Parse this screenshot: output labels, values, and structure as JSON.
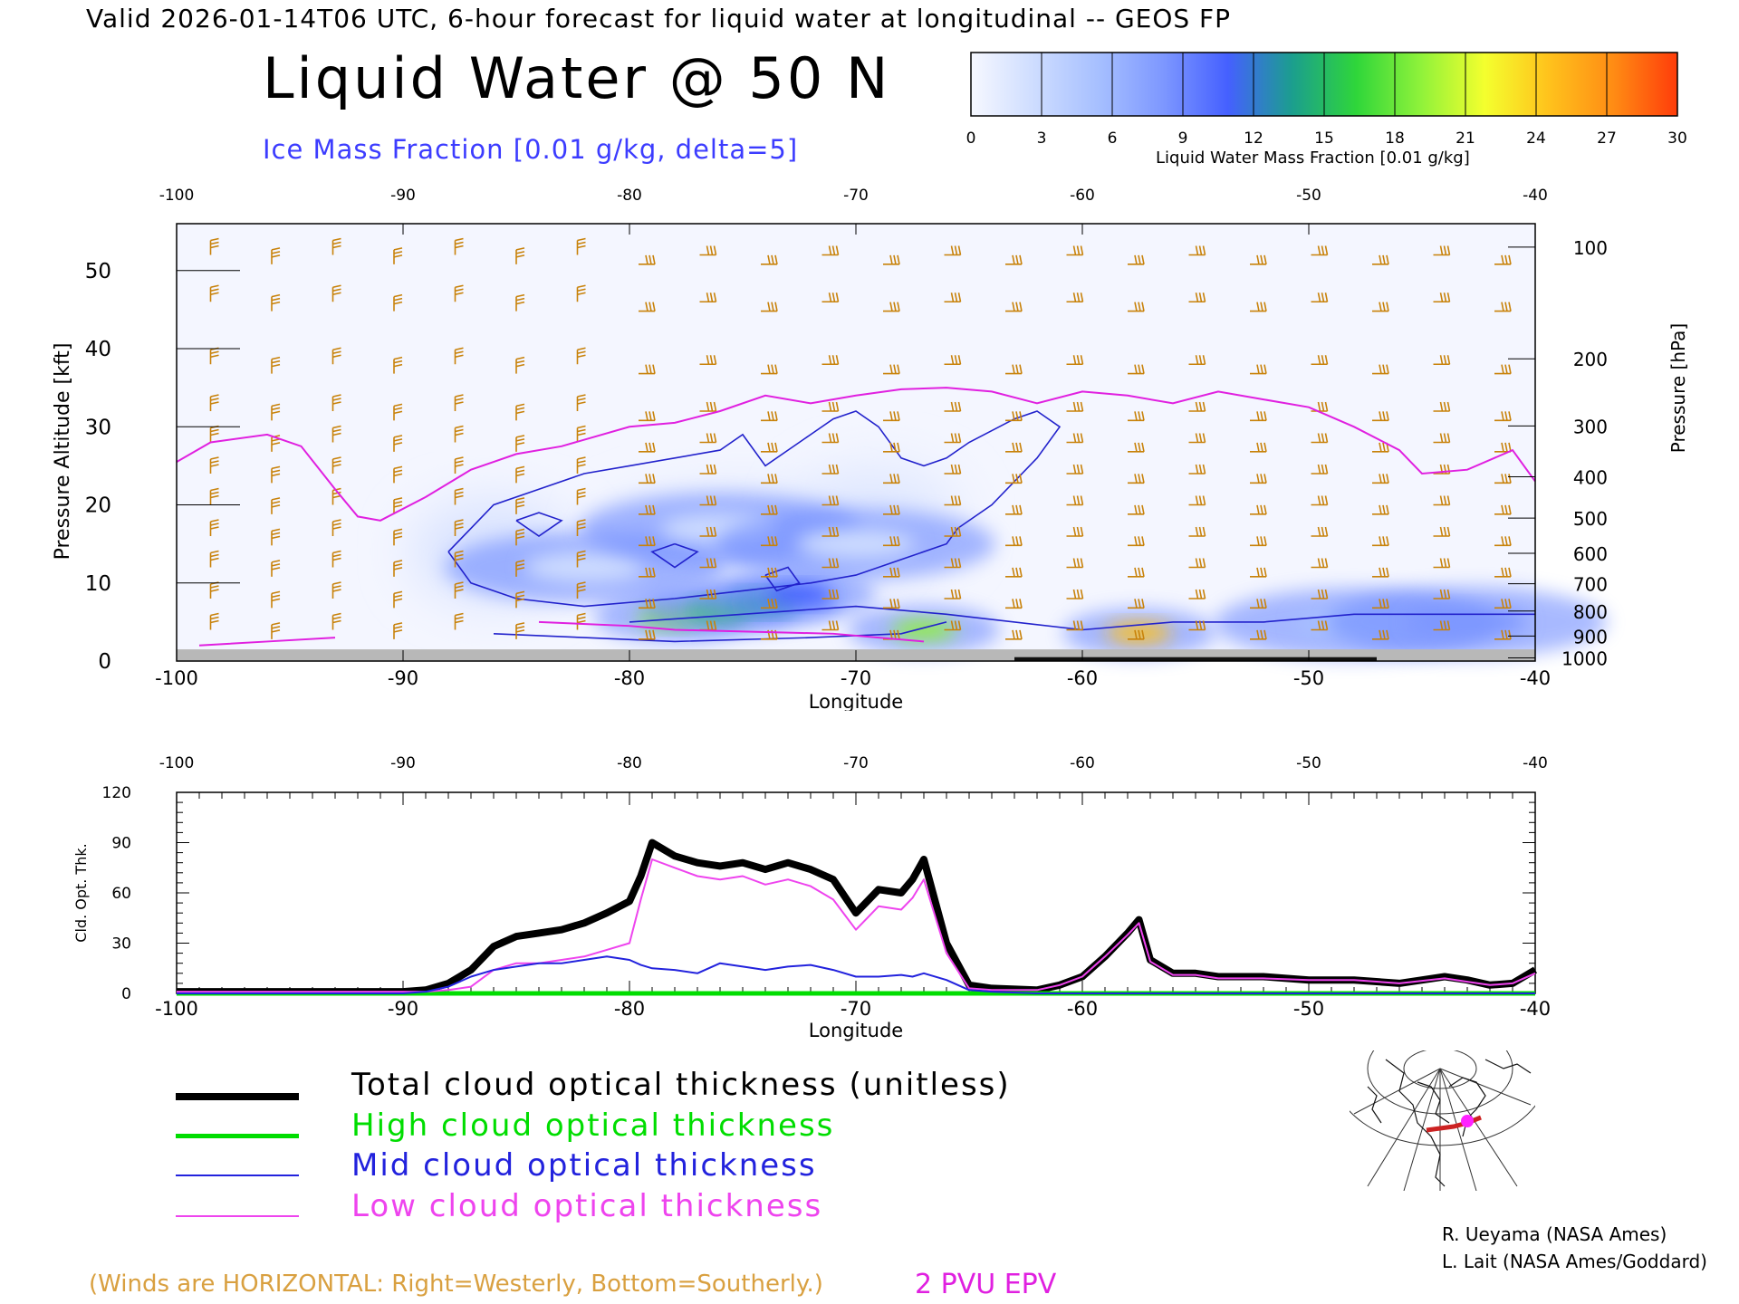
{
  "header": {
    "valid_line": "Valid 2026-01-14T06 UTC, 6-hour forecast for liquid water at longitudinal -- GEOS FP",
    "title": "Liquid Water @ 50 N",
    "subtitle": "Ice Mass Fraction [0.01 g/kg, delta=5]"
  },
  "colorbar": {
    "label": "Liquid Water Mass Fraction [0.01 g/kg]",
    "ticks": [
      "0",
      "3",
      "6",
      "9",
      "12",
      "15",
      "18",
      "21",
      "24",
      "27",
      "30"
    ],
    "colors": [
      "#f6f8ff",
      "#cddcff",
      "#a6bfff",
      "#7d97ff",
      "#4560ff",
      "#1b9e8e",
      "#2fd63a",
      "#8ff23a",
      "#f4ff2e",
      "#ffc21c",
      "#ff8c14",
      "#ff3c0a"
    ]
  },
  "chart_data": [
    {
      "type": "heatmap",
      "xlabel": "Longitude",
      "ylabel": "Pressure Altitude [kft]",
      "y2label": "Pressure [hPa]",
      "xlim": [
        -100,
        -40
      ],
      "ylim": [
        0,
        56
      ],
      "x_ticks": [
        "-100",
        "-90",
        "-80",
        "-70",
        "-60",
        "-50",
        "-40"
      ],
      "y_ticks": [
        "0",
        "10",
        "20",
        "30",
        "40",
        "50"
      ],
      "pressure_ticks": [
        {
          "label": "100",
          "kft": 53
        },
        {
          "label": "200",
          "kft": 38.7
        },
        {
          "label": "300",
          "kft": 30.1
        },
        {
          "label": "400",
          "kft": 23.6
        },
        {
          "label": "500",
          "kft": 18.3
        },
        {
          "label": "600",
          "kft": 13.8
        },
        {
          "label": "700",
          "kft": 9.9
        },
        {
          "label": "800",
          "kft": 6.4
        },
        {
          "label": "900",
          "kft": 3.2
        },
        {
          "label": "1000",
          "kft": 0.4
        }
      ],
      "liquid_water_blobs": [
        {
          "lon": -78.2,
          "kft": 5.6,
          "value": 19
        },
        {
          "lon": -76.0,
          "kft": 6.5,
          "value": 16
        },
        {
          "lon": -74.0,
          "kft": 7.5,
          "value": 14
        },
        {
          "lon": -72.5,
          "kft": 8.5,
          "value": 11
        },
        {
          "lon": -67.0,
          "kft": 4.0,
          "value": 20
        },
        {
          "lon": -57.5,
          "kft": 3.6,
          "value": 25
        },
        {
          "lon": -48.0,
          "kft": 4.8,
          "value": 6
        },
        {
          "lon": -43.0,
          "kft": 5.0,
          "value": 7
        },
        {
          "lon": -82.0,
          "kft": 12.0,
          "value": 4
        },
        {
          "lon": -76.0,
          "kft": 17.0,
          "value": 3
        },
        {
          "lon": -70.0,
          "kft": 15.0,
          "value": 3
        }
      ],
      "epv_2pvu_kft": [
        [
          -100,
          25.5
        ],
        [
          -98.5,
          28
        ],
        [
          -96,
          29
        ],
        [
          -94.5,
          27.5
        ],
        [
          -93,
          22
        ],
        [
          -92,
          18.5
        ],
        [
          -91,
          18
        ],
        [
          -89,
          21
        ],
        [
          -87,
          24.5
        ],
        [
          -85,
          26.5
        ],
        [
          -83,
          27.5
        ],
        [
          -80,
          30
        ],
        [
          -78,
          30.5
        ],
        [
          -76,
          32
        ],
        [
          -74,
          34
        ],
        [
          -72,
          33
        ],
        [
          -70,
          34
        ],
        [
          -68,
          34.8
        ],
        [
          -66,
          35
        ],
        [
          -64,
          34.5
        ],
        [
          -62,
          33
        ],
        [
          -60,
          34.5
        ],
        [
          -58,
          34
        ],
        [
          -56,
          33
        ],
        [
          -54,
          34.5
        ],
        [
          -52,
          33.5
        ],
        [
          -50,
          32.5
        ],
        [
          -48,
          30
        ],
        [
          -46,
          27
        ],
        [
          -45,
          24
        ],
        [
          -43,
          24.5
        ],
        [
          -41,
          27
        ],
        [
          -40,
          23
        ]
      ]
    },
    {
      "type": "line",
      "xlabel": "Longitude",
      "ylabel": "Cld. Opt. Thk.",
      "xlim": [
        -100,
        -40
      ],
      "ylim": [
        0,
        120
      ],
      "x_ticks": [
        "-100",
        "-90",
        "-80",
        "-70",
        "-60",
        "-50",
        "-40"
      ],
      "y_ticks": [
        "0",
        "30",
        "60",
        "90",
        "120"
      ],
      "x": [
        -100,
        -95,
        -90,
        -89,
        -88,
        -87,
        -86,
        -85,
        -84,
        -83,
        -82,
        -81,
        -80,
        -79.5,
        -79,
        -78,
        -77,
        -76,
        -75,
        -74,
        -73,
        -72,
        -71,
        -70,
        -69.5,
        -69,
        -68,
        -67.5,
        -67,
        -66,
        -65,
        -64,
        -62,
        -61,
        -60,
        -59,
        -58,
        -57.5,
        -57,
        -56,
        -55,
        -54,
        -52,
        -50,
        -48,
        -46,
        -44,
        -43,
        -42,
        -41,
        -40
      ],
      "series": [
        {
          "name": "Total cloud optical thickness (unitless)",
          "color": "#000000",
          "width": 8,
          "values": [
            1,
            1,
            1,
            2,
            6,
            14,
            28,
            34,
            36,
            38,
            42,
            48,
            55,
            70,
            90,
            82,
            78,
            76,
            78,
            74,
            78,
            74,
            68,
            48,
            55,
            62,
            60,
            68,
            80,
            30,
            5,
            3,
            2,
            5,
            10,
            22,
            36,
            44,
            20,
            12,
            12,
            10,
            10,
            8,
            8,
            6,
            10,
            8,
            5,
            6,
            14
          ]
        },
        {
          "name": "High cloud optical thickness",
          "color": "#00dd00",
          "width": 5,
          "values": [
            0,
            0,
            0,
            0,
            0,
            0,
            0,
            0,
            0,
            0,
            0,
            0,
            0,
            0,
            0,
            0,
            0,
            0,
            0,
            0,
            0,
            0,
            0,
            0,
            0,
            0,
            0,
            0,
            0,
            0,
            0,
            0,
            0,
            0,
            0,
            0,
            0,
            0,
            0,
            0,
            0,
            0,
            0,
            0,
            0,
            0,
            0,
            0,
            0,
            0,
            0
          ]
        },
        {
          "name": "Mid cloud optical thickness",
          "color": "#2222dd",
          "width": 2,
          "values": [
            0,
            0,
            0,
            1,
            4,
            10,
            14,
            16,
            18,
            18,
            20,
            22,
            20,
            17,
            15,
            14,
            12,
            18,
            16,
            14,
            16,
            17,
            14,
            10,
            10,
            10,
            11,
            10,
            12,
            8,
            2,
            1,
            0,
            0,
            0,
            0,
            0,
            0,
            0,
            0,
            0,
            0,
            0,
            0,
            0,
            0,
            0,
            0,
            0,
            0,
            0
          ]
        },
        {
          "name": "Low cloud optical thickness",
          "color": "#ee44ee",
          "width": 2,
          "values": [
            1,
            1,
            1,
            1,
            2,
            4,
            14,
            18,
            18,
            20,
            22,
            26,
            30,
            56,
            80,
            75,
            70,
            68,
            70,
            65,
            68,
            64,
            56,
            38,
            45,
            52,
            50,
            57,
            68,
            24,
            3,
            2,
            2,
            5,
            10,
            22,
            35,
            42,
            19,
            11,
            11,
            9,
            9,
            8,
            8,
            6,
            9,
            7,
            5,
            6,
            12
          ]
        }
      ]
    }
  ],
  "legend": [
    {
      "label": "Total cloud optical thickness (unitless)",
      "color": "#000000",
      "width": 8
    },
    {
      "label": "High cloud optical thickness",
      "color": "#00dd00",
      "width": 5
    },
    {
      "label": "Mid cloud optical thickness",
      "color": "#2222dd",
      "width": 2
    },
    {
      "label": "Low cloud optical thickness",
      "color": "#ee44ee",
      "width": 2
    }
  ],
  "notes": {
    "winds": "(Winds are HORIZONTAL: Right=Westerly, Bottom=Southerly.)",
    "pvu": "2 PVU EPV"
  },
  "credits": {
    "line1": "R. Ueyama (NASA Ames)",
    "line2": "L. Lait (NASA Ames/Goddard)"
  },
  "colors": {
    "wind_barb": "#c8820a",
    "ice_contour": "#2222cc",
    "epv_line": "#e020e0",
    "terrain": "#b8b8b8"
  }
}
